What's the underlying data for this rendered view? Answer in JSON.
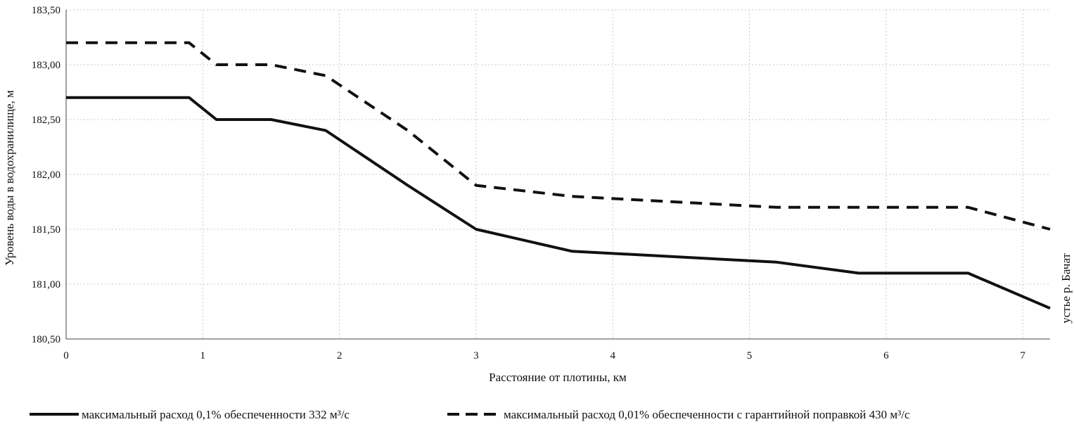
{
  "chart_data": {
    "type": "line",
    "title": "",
    "xlabel": "Расстояние от плотины, км",
    "ylabel": "Уровень воды в водохранилище, м",
    "xlim": [
      0,
      7.2
    ],
    "ylim": [
      180.5,
      183.5
    ],
    "x_ticks": [
      0,
      1,
      2,
      3,
      4,
      5,
      6,
      7
    ],
    "x_tick_labels": [
      "0",
      "1",
      "2",
      "3",
      "4",
      "5",
      "6",
      "7"
    ],
    "y_ticks": [
      180.5,
      181.0,
      181.5,
      182.0,
      182.5,
      183.0,
      183.5
    ],
    "y_tick_labels": [
      "180,50",
      "181,00",
      "181,50",
      "182,00",
      "182,50",
      "183,00",
      "183,50"
    ],
    "grid": true,
    "annotation": "устье р. Бачат",
    "legend_position": "bottom",
    "series": [
      {
        "name": "максимальный расход 0,1% обеспеченности 332 м³/с",
        "style": "solid",
        "color": "#111111",
        "x": [
          0,
          0.9,
          1.1,
          1.5,
          1.9,
          2.5,
          3.0,
          3.7,
          5.2,
          5.8,
          6.6,
          7.2
        ],
        "y": [
          182.7,
          182.7,
          182.5,
          182.5,
          182.4,
          181.9,
          181.5,
          181.3,
          181.2,
          181.1,
          181.1,
          180.78
        ]
      },
      {
        "name": "максимальный расход 0,01% обеспеченности с гарантийной поправкой 430 м³/с",
        "style": "dashed",
        "color": "#111111",
        "x": [
          0,
          0.9,
          1.1,
          1.5,
          1.9,
          2.5,
          3.0,
          3.7,
          5.2,
          5.8,
          6.6,
          7.2
        ],
        "y": [
          183.2,
          183.2,
          183.0,
          183.0,
          182.9,
          182.4,
          181.9,
          181.8,
          181.7,
          181.7,
          181.7,
          181.5
        ]
      }
    ]
  }
}
